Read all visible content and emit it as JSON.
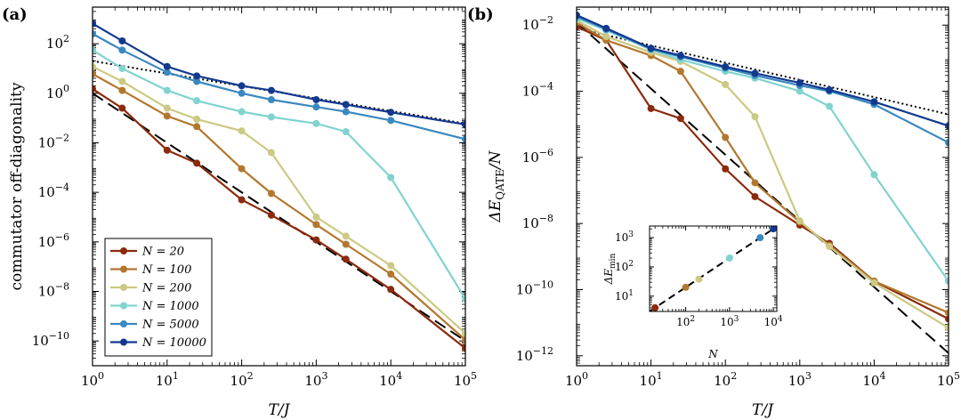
{
  "chart_data": [
    {
      "type": "line",
      "panel_label": "(a)",
      "xlabel": "T/J",
      "ylabel": "commutator off-diagonality",
      "xscale": "log",
      "yscale": "log",
      "xlim": [
        1,
        100000
      ],
      "ylim": [
        1e-11,
        3000
      ],
      "x_ticks": [
        {
          "label": "10",
          "exp": "0",
          "value": 1
        },
        {
          "label": "10",
          "exp": "1",
          "value": 10
        },
        {
          "label": "10",
          "exp": "2",
          "value": 100
        },
        {
          "label": "10",
          "exp": "3",
          "value": 1000
        },
        {
          "label": "10",
          "exp": "4",
          "value": 10000
        },
        {
          "label": "10",
          "exp": "5",
          "value": 100000
        }
      ],
      "y_ticks": [
        {
          "label": "10",
          "exp": "2",
          "value": 100
        },
        {
          "label": "10",
          "exp": "0",
          "value": 1
        },
        {
          "label": "10",
          "exp": "−2",
          "value": 0.01
        },
        {
          "label": "10",
          "exp": "−4",
          "value": 0.0001
        },
        {
          "label": "10",
          "exp": "−6",
          "value": 1e-06
        },
        {
          "label": "10",
          "exp": "−8",
          "value": 1e-08
        },
        {
          "label": "10",
          "exp": "−10",
          "value": 1e-10
        }
      ],
      "legend": {
        "location": "lower-left",
        "entries": [
          "N = 20",
          "N = 100",
          "N = 200",
          "N = 1000",
          "N = 5000",
          "N = 10000"
        ]
      },
      "x": [
        1,
        2.5,
        10,
        25,
        100,
        250,
        1000,
        2500,
        10000,
        100000
      ],
      "series": [
        {
          "name": "N = 20",
          "color": "#8b2a0c",
          "values": [
            1.5,
            0.25,
            0.005,
            0.0015,
            5e-05,
            1.2e-05,
            1.2e-06,
            2e-07,
            1.2e-08,
            5e-11
          ]
        },
        {
          "name": "N = 100",
          "color": "#b3772e",
          "values": [
            6,
            1.3,
            0.12,
            0.045,
            0.0009,
            9e-05,
            5e-06,
            8e-07,
            5e-08,
            1.1e-10
          ]
        },
        {
          "name": "N = 200",
          "color": "#ccc982",
          "values": [
            12,
            3,
            0.25,
            0.09,
            0.03,
            0.004,
            1e-05,
            1.7e-06,
            1.1e-07,
            2e-10
          ]
        },
        {
          "name": "N = 1000",
          "color": "#80d3cf",
          "values": [
            55,
            10,
            1.3,
            0.5,
            0.18,
            0.11,
            0.06,
            0.028,
            0.0004,
            5e-09
          ]
        },
        {
          "name": "N = 5000",
          "color": "#3a88bf",
          "values": [
            250,
            55,
            7,
            3,
            1,
            0.55,
            0.28,
            0.18,
            0.08,
            0.014
          ]
        },
        {
          "name": "N = 10000",
          "color": "#13398f",
          "values": [
            650,
            130,
            12,
            5,
            2,
            1.3,
            0.55,
            0.35,
            0.17,
            0.055
          ]
        }
      ],
      "reference_lines": [
        {
          "style": "dashed",
          "color": "#000000",
          "points": [
            [
              1,
              1
            ],
            [
              100000,
              1e-10
            ]
          ]
        },
        {
          "style": "dotted",
          "color": "#000000",
          "points": [
            [
              1,
              20
            ],
            [
              100000,
              0.06
            ]
          ]
        }
      ]
    },
    {
      "type": "line",
      "panel_label": "(b)",
      "xlabel": "T/J",
      "ylabel": "ΔE",
      "ylabel_sub": "QATE",
      "ylabel_tail": "/N",
      "xscale": "log",
      "yscale": "log",
      "xlim": [
        1,
        100000
      ],
      "ylim": [
        5e-13,
        0.035
      ],
      "x_ticks": [
        {
          "label": "10",
          "exp": "0",
          "value": 1
        },
        {
          "label": "10",
          "exp": "1",
          "value": 10
        },
        {
          "label": "10",
          "exp": "2",
          "value": 100
        },
        {
          "label": "10",
          "exp": "3",
          "value": 1000
        },
        {
          "label": "10",
          "exp": "4",
          "value": 10000
        },
        {
          "label": "10",
          "exp": "5",
          "value": 100000
        }
      ],
      "y_ticks": [
        {
          "label": "10",
          "exp": "−2",
          "value": 0.01
        },
        {
          "label": "10",
          "exp": "−4",
          "value": 0.0001
        },
        {
          "label": "10",
          "exp": "−6",
          "value": 1e-06
        },
        {
          "label": "10",
          "exp": "−8",
          "value": 1e-08
        },
        {
          "label": "10",
          "exp": "−10",
          "value": 1e-10
        },
        {
          "label": "10",
          "exp": "−12",
          "value": 1e-12
        }
      ],
      "x": [
        1,
        2.5,
        10,
        25,
        100,
        250,
        1000,
        2500,
        10000,
        100000
      ],
      "series": [
        {
          "name": "N = 20",
          "color": "#8b2a0c",
          "values": [
            0.009,
            0.0035,
            3e-05,
            1.5e-05,
            4.5e-07,
            6.5e-08,
            9e-09,
            2.5e-09,
            1.8e-10,
            1.3e-11
          ]
        },
        {
          "name": "N = 100",
          "color": "#b3772e",
          "values": [
            0.012,
            0.0035,
            0.0012,
            0.0004,
            4e-06,
            1.7e-07,
            1.1e-08,
            2.2e-09,
            1.8e-10,
            2e-11
          ]
        },
        {
          "name": "N = 200",
          "color": "#ccc982",
          "values": [
            0.014,
            0.0045,
            0.0015,
            0.0008,
            0.00016,
            1.7e-05,
            1.2e-08,
            2e-09,
            1.6e-10,
            7e-12
          ]
        },
        {
          "name": "N = 1000",
          "color": "#80d3cf",
          "values": [
            0.016,
            0.007,
            0.0018,
            0.0009,
            0.0004,
            0.00025,
            0.0001,
            3.5e-05,
            3e-07,
            1.8e-10
          ]
        },
        {
          "name": "N = 5000",
          "color": "#3a88bf",
          "values": [
            0.018,
            0.0075,
            0.0019,
            0.0011,
            0.0005,
            0.0003,
            0.00015,
            0.0001,
            4e-05,
            2.8e-06
          ]
        },
        {
          "name": "N = 10000",
          "color": "#13398f",
          "values": [
            0.02,
            0.008,
            0.002,
            0.0012,
            0.00055,
            0.00035,
            0.00018,
            0.00011,
            4.8e-05,
            9e-06
          ]
        }
      ],
      "reference_lines": [
        {
          "style": "dashed",
          "color": "#000000",
          "points": [
            [
              1,
              0.012
            ],
            [
              100000,
              1.2e-12
            ]
          ]
        },
        {
          "style": "dotted",
          "color": "#000000",
          "points": [
            [
              1,
              0.008
            ],
            [
              100000,
              2e-05
            ]
          ]
        }
      ],
      "inset": {
        "type": "scatter",
        "xlabel": "N",
        "ylabel": "ΔE",
        "ylabel_sub": "min",
        "xscale": "log",
        "yscale": "log",
        "xlim": [
          15,
          12000
        ],
        "ylim": [
          3,
          2500
        ],
        "x_ticks": [
          {
            "label": "10",
            "exp": "2",
            "value": 100
          },
          {
            "label": "10",
            "exp": "3",
            "value": 1000
          },
          {
            "label": "10",
            "exp": "4",
            "value": 10000
          }
        ],
        "y_ticks": [
          {
            "label": "10",
            "exp": "1",
            "value": 10
          },
          {
            "label": "10",
            "exp": "2",
            "value": 100
          },
          {
            "label": "10",
            "exp": "3",
            "value": 1000
          }
        ],
        "points": [
          {
            "x": 20,
            "y": 4,
            "color": "#8b2a0c"
          },
          {
            "x": 100,
            "y": 20,
            "color": "#b3772e"
          },
          {
            "x": 200,
            "y": 38,
            "color": "#ccc982"
          },
          {
            "x": 1000,
            "y": 200,
            "color": "#80d3cf"
          },
          {
            "x": 5000,
            "y": 1000,
            "color": "#3a88bf"
          },
          {
            "x": 10000,
            "y": 2000,
            "color": "#13398f"
          }
        ],
        "fit_line": {
          "style": "dashed",
          "color": "#000000",
          "points": [
            [
              15,
              3
            ],
            [
              12000,
              2400
            ]
          ]
        }
      }
    }
  ]
}
